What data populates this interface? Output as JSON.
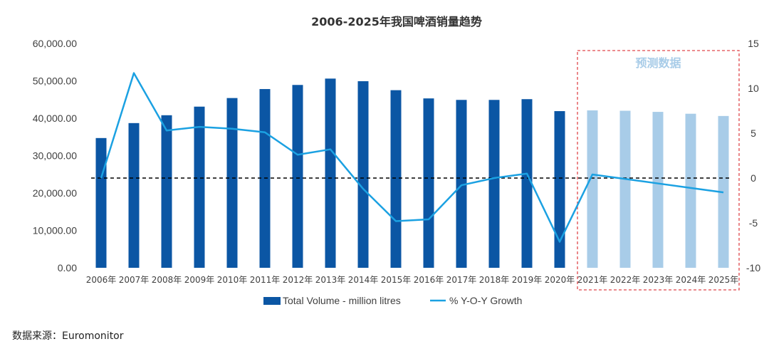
{
  "colors": {
    "bar_actual": "#0B56A4",
    "bar_forecast": "#A8CCE8",
    "line": "#1BA1E2",
    "forecast_box": "#E0474C",
    "zero_line": "#000000"
  },
  "source_text": "数据来源：Euromonitor",
  "chart_data": {
    "type": "bar+line",
    "title": "2006-2025年我国啤酒销量趋势",
    "categories": [
      "2006年",
      "2007年",
      "2008年",
      "2009年",
      "2010年",
      "2011年",
      "2012年",
      "2013年",
      "2014年",
      "2015年",
      "2016年",
      "2017年",
      "2018年",
      "2019年",
      "2020年",
      "2021年",
      "2022年",
      "2023年",
      "2024年",
      "2025年"
    ],
    "series": [
      {
        "name": "Total Volume - million litres",
        "kind": "bar",
        "axis": "left",
        "values": [
          34700,
          38700,
          40800,
          43100,
          45400,
          47800,
          48900,
          50600,
          49900,
          47500,
          45300,
          44900,
          44900,
          45100,
          41900,
          42100,
          42000,
          41700,
          41200,
          40600
        ],
        "forecast_from_index": 15
      },
      {
        "name": "% Y-O-Y Growth",
        "kind": "line",
        "axis": "right",
        "values": [
          0.0,
          11.7,
          5.3,
          5.7,
          5.5,
          5.1,
          2.6,
          3.2,
          -1.2,
          -4.8,
          -4.6,
          -0.8,
          0.0,
          0.5,
          -7.1,
          0.4,
          -0.1,
          -0.6,
          -1.1,
          -1.6
        ]
      }
    ],
    "y_left": {
      "min": 0,
      "max": 60000,
      "step": 10000,
      "tick_labels": [
        "0.00",
        "10,000.00",
        "20,000.00",
        "30,000.00",
        "40,000.00",
        "50,000.00",
        "60,000.00"
      ]
    },
    "y_right": {
      "min": -10,
      "max": 15,
      "step": 5,
      "tick_labels": [
        "-10",
        "-5",
        "0",
        "5",
        "10",
        "15"
      ]
    },
    "reference_line": {
      "axis": "right",
      "value": 0,
      "style": "dashed"
    },
    "forecast_annotation": "预测数据",
    "legend": {
      "placement": "bottom-center",
      "entries": [
        "Total Volume - million litres",
        "% Y-O-Y Growth"
      ]
    }
  }
}
